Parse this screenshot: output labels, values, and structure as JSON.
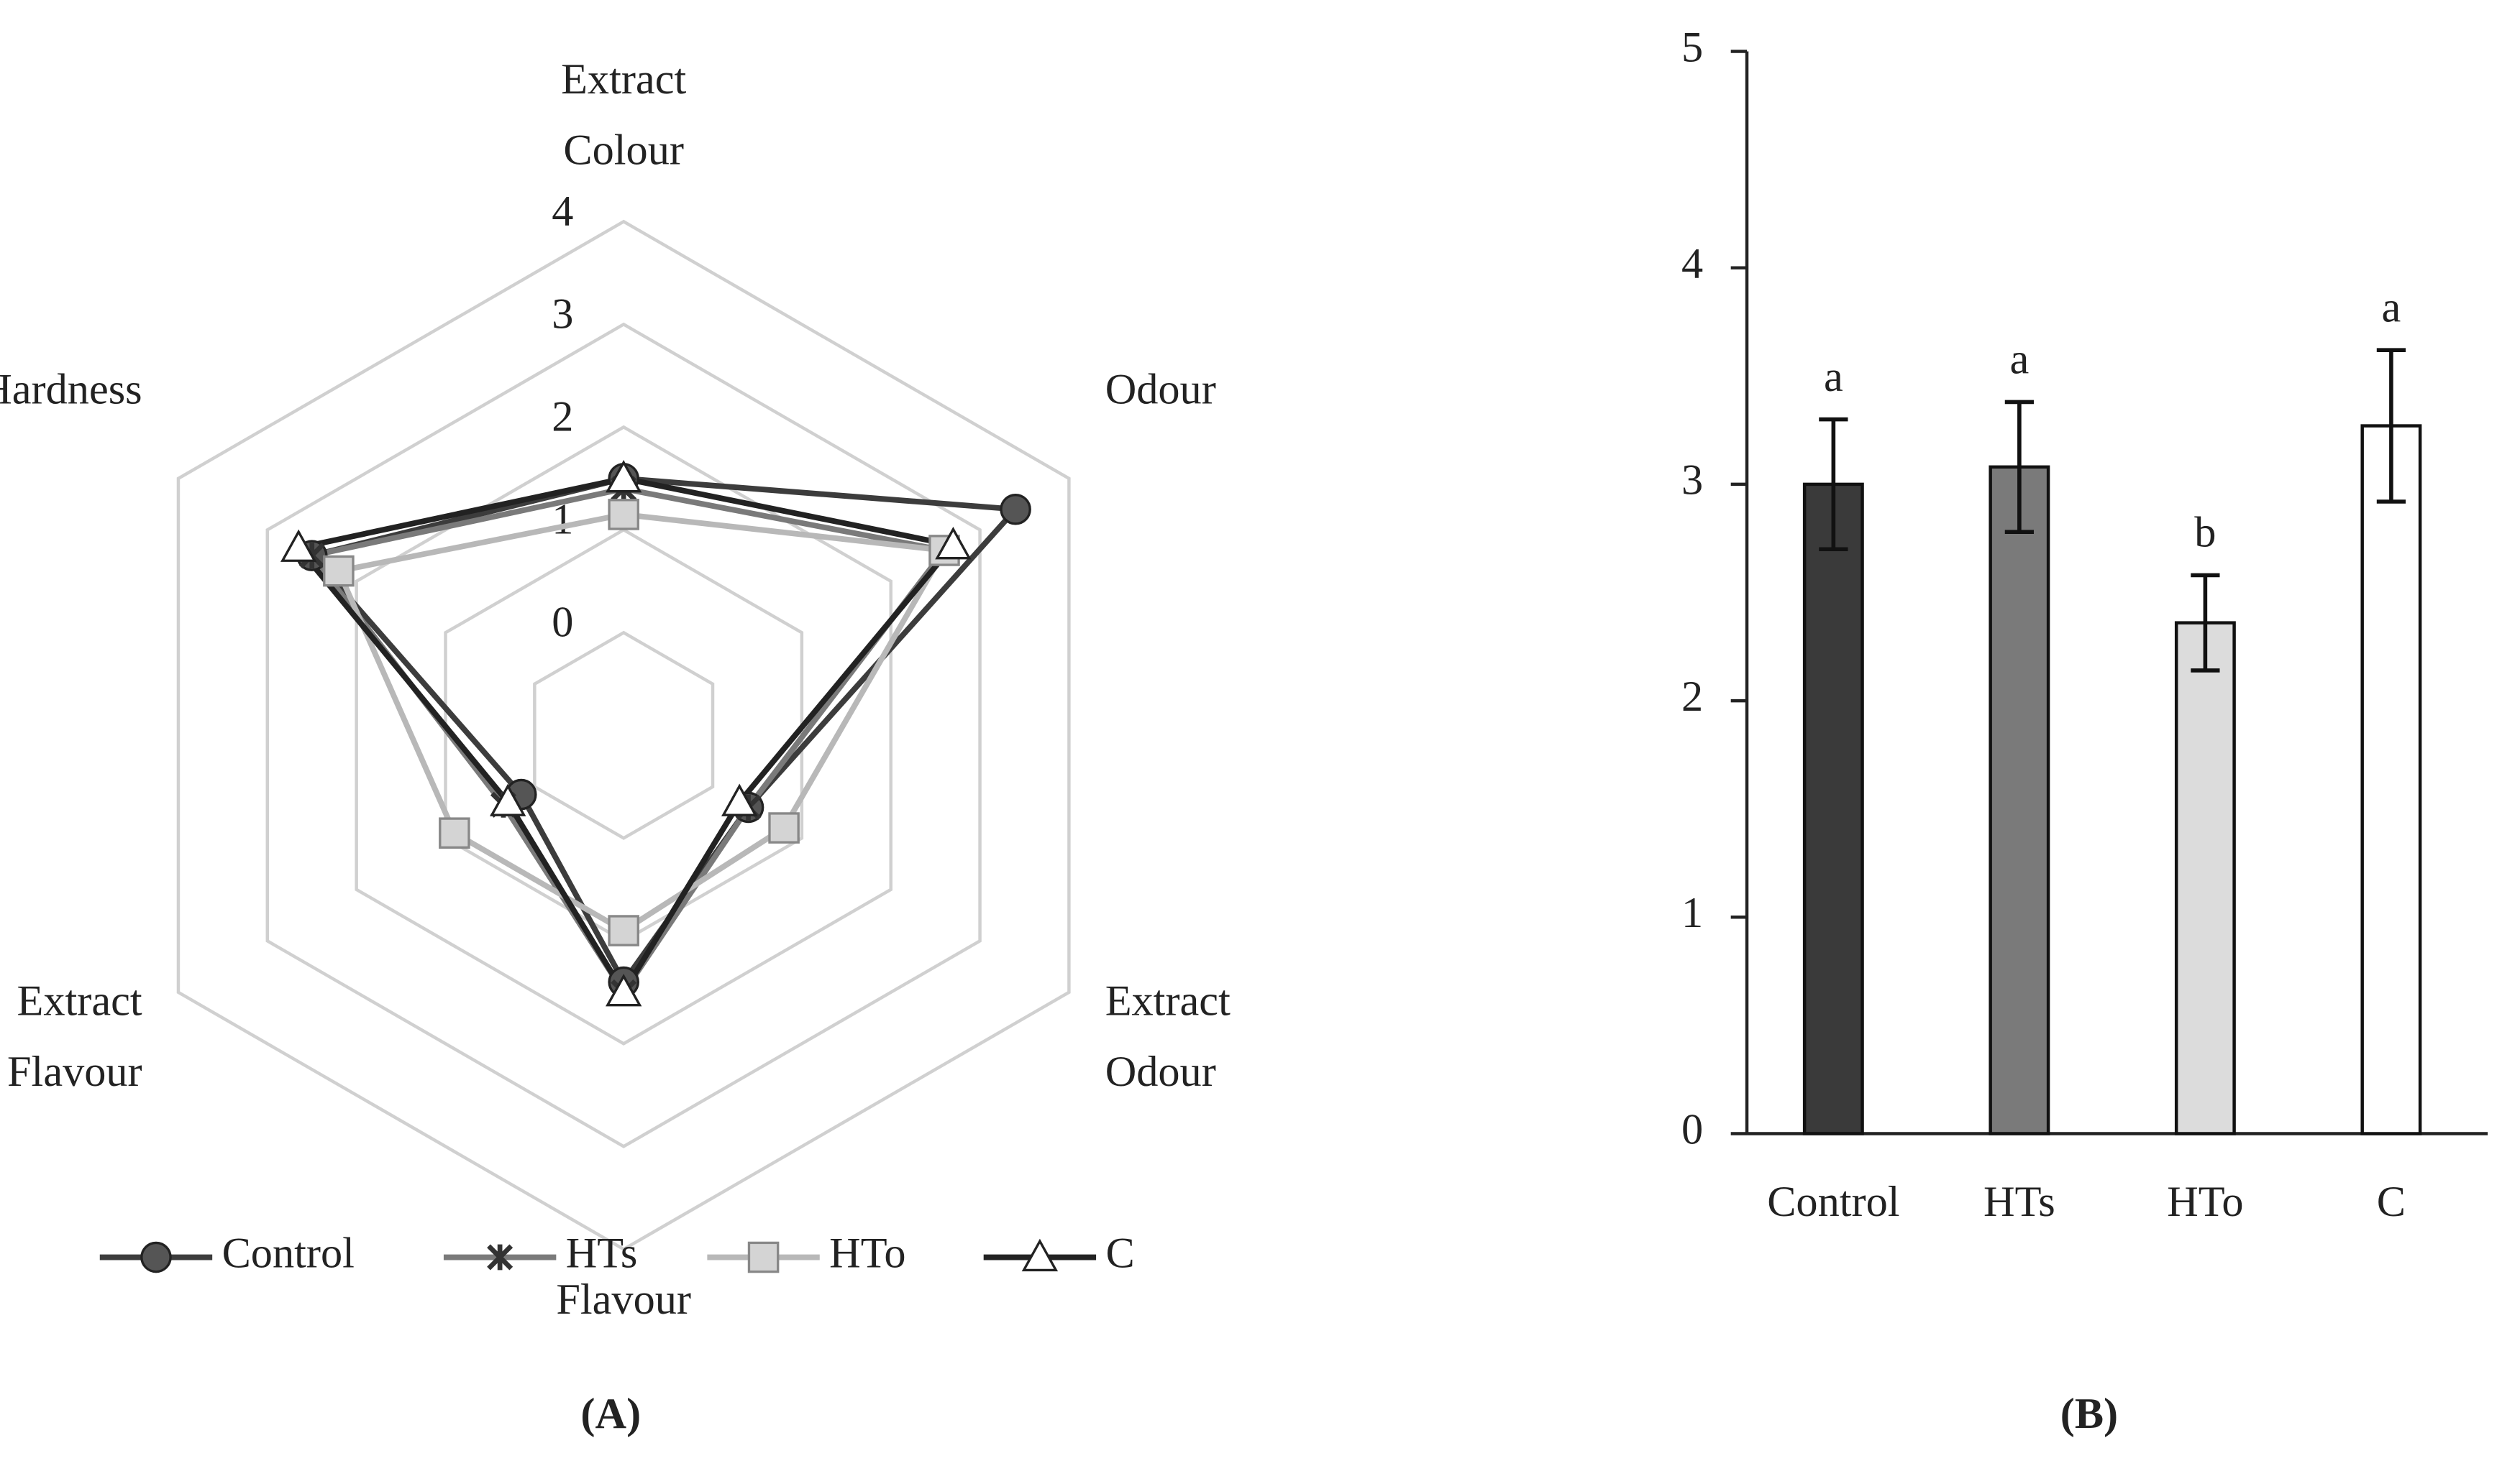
{
  "chart_data": [
    {
      "type": "radar",
      "panel_label": "(A)",
      "categories": [
        "Extract Colour",
        "Odour",
        "Extract Odour",
        "Flavour",
        "Extract Flavour",
        "Hardness"
      ],
      "rlim": [
        -1,
        4
      ],
      "rticks": [
        0,
        1,
        2,
        3,
        4
      ],
      "grid": true,
      "legend": "bottom",
      "series": [
        {
          "name": "Control",
          "color": "#3c3c3c",
          "marker": "circle",
          "marker_fill": "#555555",
          "values": [
            1.5,
            3.4,
            0.4,
            1.4,
            0.15,
            2.5
          ]
        },
        {
          "name": "HTs",
          "color": "#7a7a7a",
          "marker": "star",
          "marker_fill": "#333333",
          "values": [
            1.4,
            2.6,
            0.4,
            1.5,
            0.35,
            2.5
          ]
        },
        {
          "name": "HTo",
          "color": "#b8b8b8",
          "marker": "square",
          "marker_fill": "#d4d4d4",
          "values": [
            1.15,
            2.6,
            0.8,
            0.9,
            0.9,
            2.2
          ]
        },
        {
          "name": "C",
          "color": "#222222",
          "marker": "triangle",
          "marker_fill": "#ffffff",
          "values": [
            1.5,
            2.7,
            0.3,
            1.5,
            0.3,
            2.65
          ]
        }
      ]
    },
    {
      "type": "bar",
      "panel_label": "(B)",
      "categories": [
        "Control",
        "HTs",
        "HTo",
        "C"
      ],
      "values": [
        3.0,
        3.08,
        2.36,
        3.27
      ],
      "errors": [
        0.3,
        0.3,
        0.22,
        0.35
      ],
      "letters": [
        "a",
        "a",
        "b",
        "a"
      ],
      "colors": [
        "#3a3a3a",
        "#7a7a7a",
        "#dcdcdc",
        "#ffffff"
      ],
      "ylim": [
        0,
        5
      ],
      "yticks": [
        0,
        1,
        2,
        3,
        4,
        5
      ]
    }
  ]
}
